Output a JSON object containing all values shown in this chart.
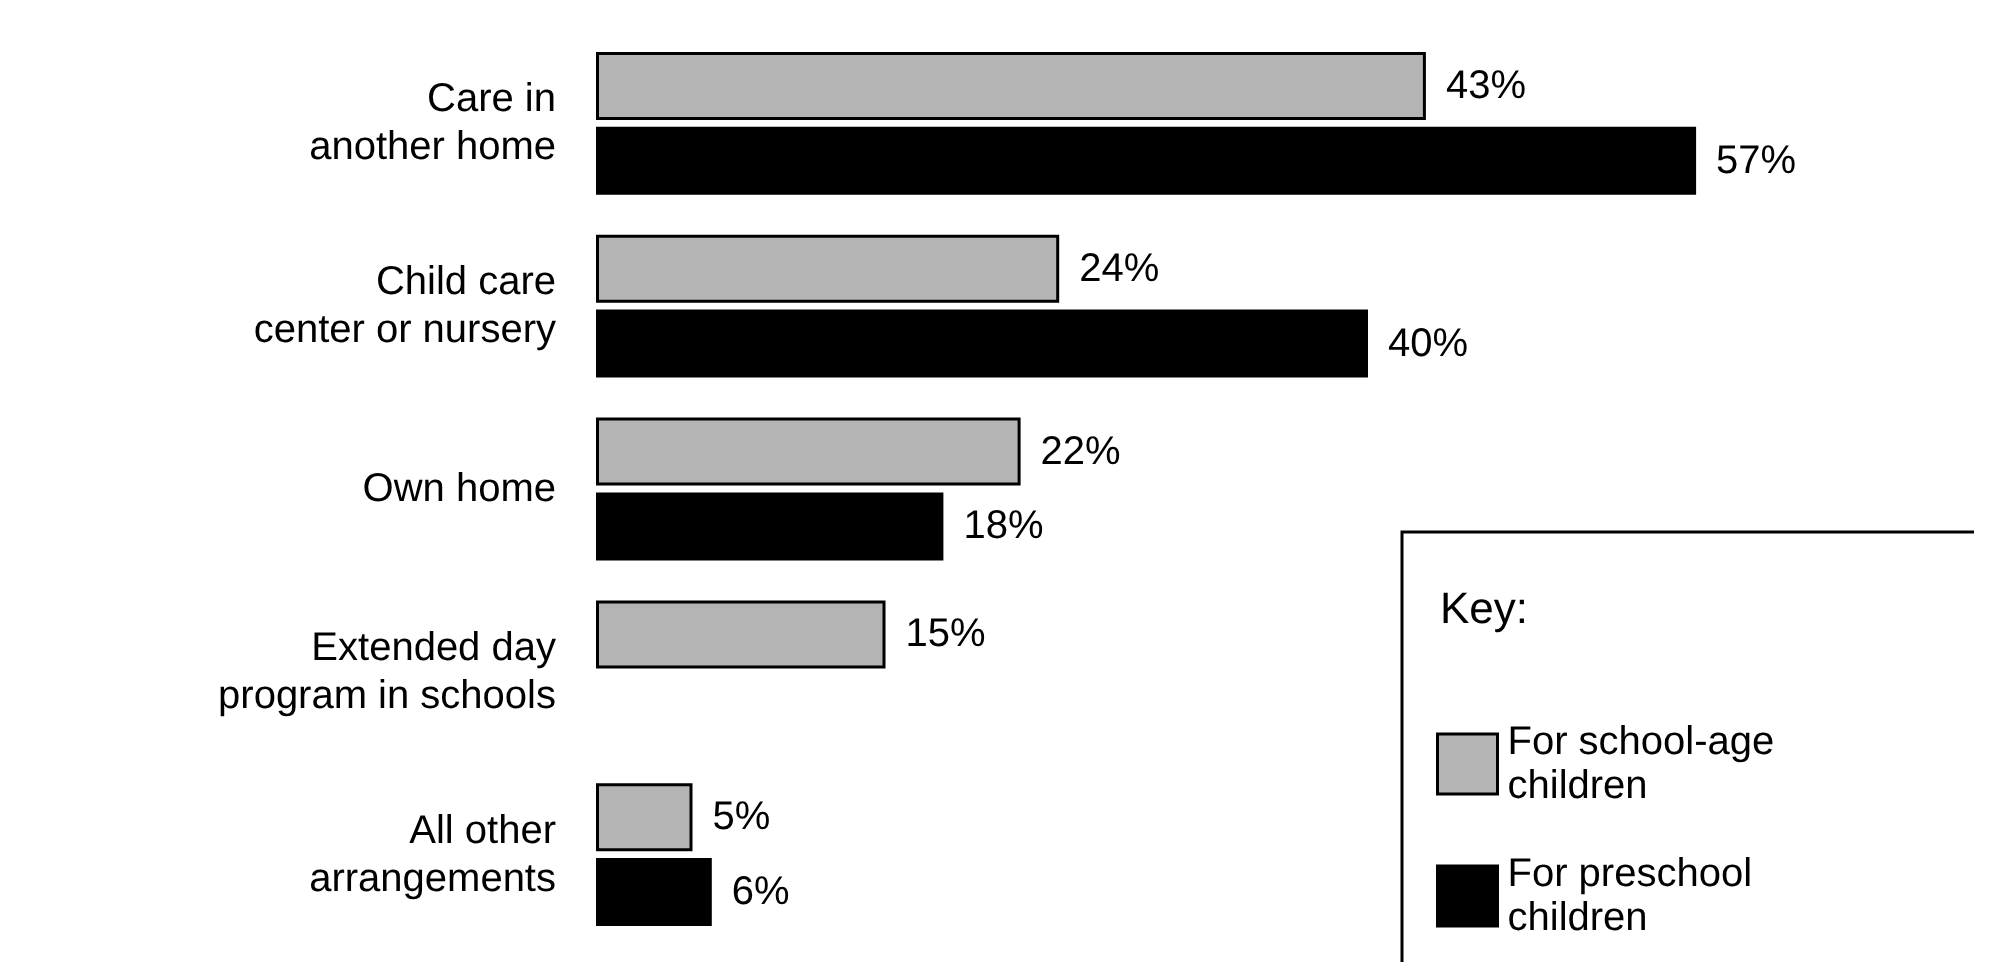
{
  "chart_data": {
    "type": "bar",
    "orientation": "horizontal",
    "categories": [
      "Care in\nanother home",
      "Child care\ncenter or nursery",
      "Own home",
      "Extended day\nprogram in schools",
      "All other\narrangements"
    ],
    "legend": "bottom right",
    "legend_title": "Key:",
    "series": [
      {
        "name": "For school-age\nchildren",
        "color": "#b4b4b4",
        "values": [
          43,
          24,
          22,
          15,
          5
        ],
        "value_labels": [
          "43%",
          "24%",
          "22%",
          "15%",
          "5%"
        ]
      },
      {
        "name": "For preschool\nchildren",
        "color": "#000000",
        "values": [
          57,
          40,
          18,
          null,
          6
        ],
        "value_labels": [
          "57%",
          "40%",
          "18%",
          null,
          "6%"
        ]
      }
    ]
  }
}
